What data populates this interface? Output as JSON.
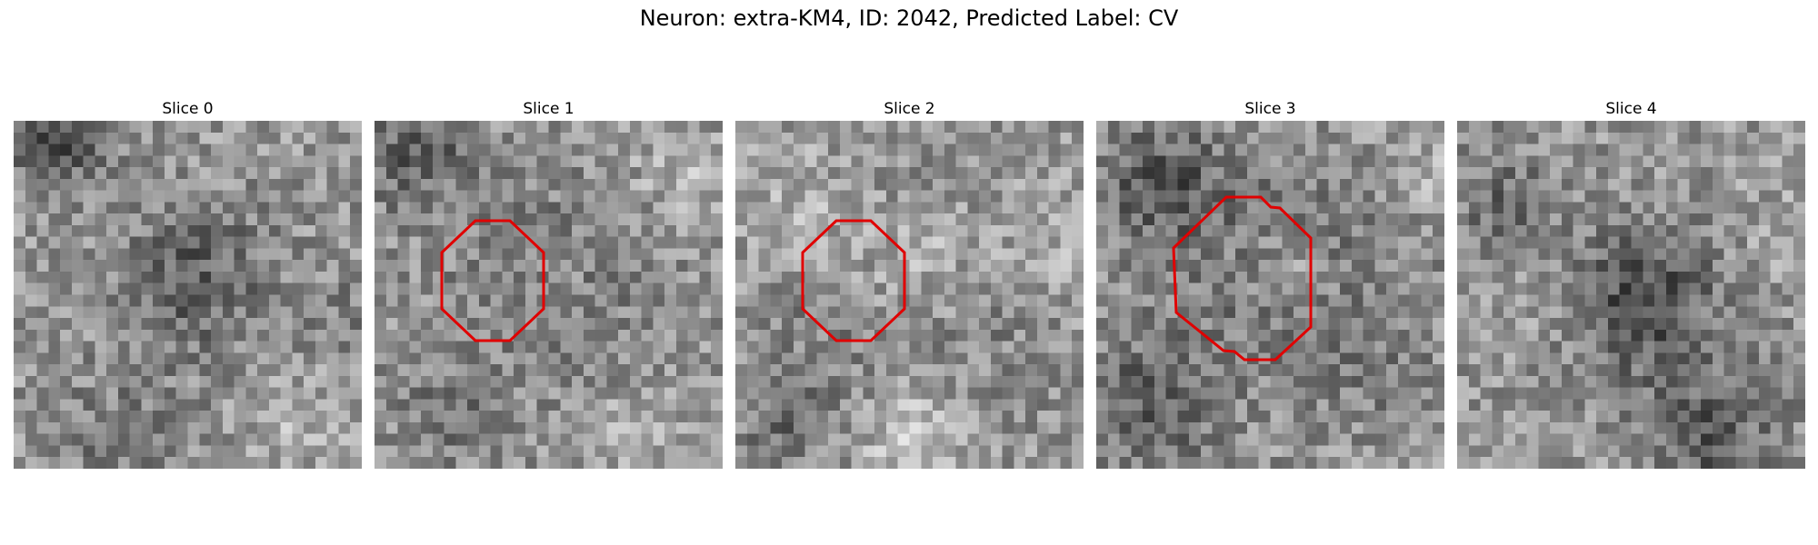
{
  "figure": {
    "title": "Neuron: extra-KM4, ID: 2042, Predicted Label: CV",
    "contour_color": "#e00000"
  },
  "panels": [
    {
      "title": "Slice 0",
      "has_contour": false
    },
    {
      "title": "Slice 1",
      "has_contour": true
    },
    {
      "title": "Slice 2",
      "has_contour": true
    },
    {
      "title": "Slice 3",
      "has_contour": true
    },
    {
      "title": "Slice 4",
      "has_contour": false
    }
  ]
}
